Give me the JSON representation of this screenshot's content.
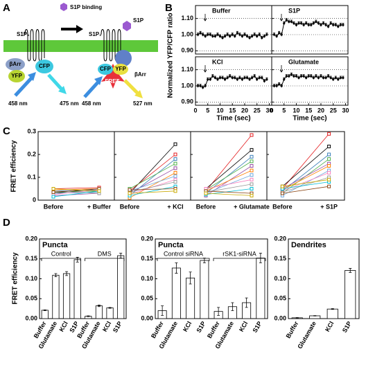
{
  "diagram": {
    "label": "A",
    "binding": "S1P binding",
    "receptor": "S1P₁",
    "ligand": "S1P",
    "arrestin": "βArr",
    "yfp": "YFP",
    "cfp": "CFP",
    "ex": "458 nm",
    "em_cfp": "475 nm",
    "fret": "FRET",
    "em_fret": "527 nm"
  },
  "chart_data": [
    {
      "type": "line",
      "panel": "B",
      "title": "Buffer",
      "ylabel": "Normalized YFP/CFP ratio",
      "color": "#000000",
      "x": [
        1,
        2,
        3,
        4,
        5,
        6,
        7,
        8,
        9,
        10,
        11,
        12,
        13,
        14,
        15,
        16,
        17,
        18,
        19,
        20,
        21,
        22,
        23,
        24,
        25,
        26,
        27,
        28,
        29
      ],
      "values": [
        1.0,
        1.01,
        1.0,
        0.99,
        1.0,
        1.0,
        0.99,
        0.99,
        1.0,
        0.99,
        0.98,
        0.99,
        1.0,
        0.99,
        1.0,
        0.99,
        1.01,
        1.0,
        0.99,
        1.0,
        0.99,
        0.98,
        0.99,
        1.0,
        0.99,
        1.0,
        0.98,
        0.99,
        1.0
      ],
      "errors": [
        0.01,
        0.01,
        0.01,
        0.01,
        0.01,
        0.01,
        0.01,
        0.01,
        0.01,
        0.01,
        0.01,
        0.01,
        0.01,
        0.01,
        0.01,
        0.01,
        0.01,
        0.01,
        0.01,
        0.01,
        0.01,
        0.01,
        0.01,
        0.01,
        0.01,
        0.01,
        0.01,
        0.01,
        0.01
      ],
      "xlim": [
        0,
        31
      ],
      "ylim": [
        0.88,
        1.18
      ],
      "yticks": [
        {
          "value": 0.9,
          "label": "0.90"
        },
        {
          "value": 1.0,
          "label": "1.00"
        },
        {
          "value": 1.1,
          "label": "1.10"
        }
      ],
      "grid": true
    },
    {
      "type": "line",
      "title": "S1P",
      "color": "#000000",
      "x": [
        1,
        2,
        3,
        4,
        5,
        6,
        7,
        8,
        9,
        10,
        11,
        12,
        13,
        14,
        15,
        16,
        17,
        18,
        19,
        20,
        21,
        22,
        23,
        24,
        25,
        26,
        27,
        28,
        29
      ],
      "values": [
        1.0,
        0.99,
        1.01,
        1.0,
        1.07,
        1.09,
        1.08,
        1.08,
        1.07,
        1.06,
        1.07,
        1.07,
        1.06,
        1.07,
        1.06,
        1.06,
        1.07,
        1.08,
        1.07,
        1.06,
        1.07,
        1.06,
        1.05,
        1.07,
        1.06,
        1.06,
        1.05,
        1.06,
        1.06
      ],
      "errors": [
        0.01,
        0.01,
        0.01,
        0.01,
        0.01,
        0.01,
        0.01,
        0.01,
        0.01,
        0.01,
        0.01,
        0.01,
        0.01,
        0.01,
        0.01,
        0.01,
        0.01,
        0.01,
        0.01,
        0.01,
        0.01,
        0.01,
        0.01,
        0.01,
        0.01,
        0.01,
        0.01,
        0.01,
        0.01
      ],
      "xlim": [
        0,
        31
      ],
      "ylim": [
        0.88,
        1.18
      ],
      "yticks": [
        0.9,
        1.0,
        1.1
      ],
      "grid": true
    },
    {
      "type": "line",
      "title": "KCl",
      "xlabel": "Time (sec)",
      "color": "#000000",
      "x": [
        1,
        2,
        3,
        4,
        5,
        6,
        7,
        8,
        9,
        10,
        11,
        12,
        13,
        14,
        15,
        16,
        17,
        18,
        19,
        20,
        21,
        22,
        23,
        24,
        25,
        26,
        27,
        28,
        29
      ],
      "values": [
        1.0,
        1.0,
        0.99,
        1.0,
        1.04,
        1.04,
        1.06,
        1.05,
        1.04,
        1.05,
        1.05,
        1.04,
        1.05,
        1.06,
        1.05,
        1.05,
        1.04,
        1.05,
        1.04,
        1.05,
        1.05,
        1.04,
        1.05,
        1.06,
        1.04,
        1.05,
        1.05,
        1.03,
        1.04
      ],
      "errors": [
        0.01,
        0.01,
        0.01,
        0.01,
        0.01,
        0.01,
        0.01,
        0.01,
        0.01,
        0.01,
        0.01,
        0.01,
        0.01,
        0.01,
        0.01,
        0.01,
        0.01,
        0.01,
        0.01,
        0.01,
        0.01,
        0.01,
        0.01,
        0.01,
        0.01,
        0.01,
        0.01,
        0.01,
        0.01
      ],
      "xlim": [
        0,
        31
      ],
      "ylim": [
        0.88,
        1.18
      ],
      "xticks": [
        0,
        5,
        10,
        15,
        20,
        25,
        30
      ],
      "yticks": [
        {
          "value": 0.9,
          "label": "0.90"
        },
        {
          "value": 1.0,
          "label": "1.00"
        },
        {
          "value": 1.1,
          "label": "1.10"
        }
      ],
      "grid": true
    },
    {
      "type": "line",
      "title": "Glutamate",
      "xlabel": "Time (sec)",
      "color": "#000000",
      "x": [
        1,
        2,
        3,
        4,
        5,
        6,
        7,
        8,
        9,
        10,
        11,
        12,
        13,
        14,
        15,
        16,
        17,
        18,
        19,
        20,
        21,
        22,
        23,
        24,
        25,
        26,
        27,
        28,
        29
      ],
      "values": [
        1.0,
        1.0,
        1.01,
        1.0,
        1.04,
        1.06,
        1.06,
        1.07,
        1.06,
        1.06,
        1.05,
        1.06,
        1.06,
        1.05,
        1.06,
        1.06,
        1.05,
        1.06,
        1.05,
        1.06,
        1.05,
        1.05,
        1.06,
        1.05,
        1.04,
        1.05,
        1.04,
        1.05,
        1.05
      ],
      "errors": [
        0.01,
        0.01,
        0.01,
        0.01,
        0.01,
        0.01,
        0.01,
        0.01,
        0.01,
        0.01,
        0.01,
        0.01,
        0.01,
        0.01,
        0.01,
        0.01,
        0.01,
        0.01,
        0.01,
        0.01,
        0.01,
        0.01,
        0.01,
        0.01,
        0.01,
        0.01,
        0.01,
        0.01,
        0.01
      ],
      "xlim": [
        0,
        31
      ],
      "ylim": [
        0.88,
        1.18
      ],
      "xticks": [
        0,
        5,
        10,
        15,
        20,
        25,
        30
      ],
      "yticks": [
        0.9,
        1.0,
        1.1
      ],
      "grid": true
    },
    {
      "type": "line",
      "panel": "C",
      "ylabel": "FRET efficiency",
      "categories": [
        "Before",
        "+ Buffer"
      ],
      "ylim": [
        0,
        0.3
      ],
      "yticks": [
        0,
        0.1,
        0.2,
        0.3
      ],
      "series": [
        {
          "color": "#000000",
          "values": [
            0.03,
            0.05
          ]
        },
        {
          "color": "#e41a1c",
          "values": [
            0.05,
            0.055
          ]
        },
        {
          "color": "#377eb8",
          "values": [
            0.04,
            0.045
          ]
        },
        {
          "color": "#4daf4a",
          "values": [
            0.035,
            0.04
          ]
        },
        {
          "color": "#984ea3",
          "values": [
            0.02,
            0.03
          ]
        },
        {
          "color": "#ff7f00",
          "values": [
            0.045,
            0.05
          ]
        },
        {
          "color": "#6fa8dc",
          "values": [
            0.03,
            0.035
          ]
        },
        {
          "color": "#f781bf",
          "values": [
            0.025,
            0.045
          ]
        },
        {
          "color": "#999999",
          "values": [
            0.04,
            0.03
          ]
        },
        {
          "color": "#00bcd4",
          "values": [
            0.015,
            0.04
          ]
        },
        {
          "color": "#8b4513",
          "values": [
            0.035,
            0.05
          ]
        },
        {
          "color": "#c9a800",
          "values": [
            0.05,
            0.04
          ]
        }
      ]
    },
    {
      "type": "line",
      "categories": [
        "Before",
        "+ KCl"
      ],
      "ylim": [
        0,
        0.3
      ],
      "yticks": [
        0,
        0.1,
        0.2,
        0.3
      ],
      "series": [
        {
          "color": "#000000",
          "values": [
            0.03,
            0.245
          ]
        },
        {
          "color": "#e41a1c",
          "values": [
            0.04,
            0.2
          ]
        },
        {
          "color": "#377eb8",
          "values": [
            0.02,
            0.18
          ]
        },
        {
          "color": "#4daf4a",
          "values": [
            0.05,
            0.16
          ]
        },
        {
          "color": "#984ea3",
          "values": [
            0.03,
            0.14
          ]
        },
        {
          "color": "#ff7f00",
          "values": [
            0.01,
            0.12
          ]
        },
        {
          "color": "#6fa8dc",
          "values": [
            0.04,
            0.105
          ]
        },
        {
          "color": "#f781bf",
          "values": [
            0.025,
            0.09
          ]
        },
        {
          "color": "#999999",
          "values": [
            0.035,
            0.08
          ]
        },
        {
          "color": "#00bcd4",
          "values": [
            0.02,
            0.06
          ]
        },
        {
          "color": "#8b4513",
          "values": [
            0.045,
            0.05
          ]
        },
        {
          "color": "#c9a800",
          "values": [
            0.03,
            0.04
          ]
        }
      ]
    },
    {
      "type": "line",
      "categories": [
        "Before",
        "+ Glutamate"
      ],
      "ylim": [
        0,
        0.3
      ],
      "yticks": [
        0,
        0.1,
        0.2,
        0.3
      ],
      "series": [
        {
          "color": "#e41a1c",
          "values": [
            0.04,
            0.285
          ]
        },
        {
          "color": "#000000",
          "values": [
            0.05,
            0.22
          ]
        },
        {
          "color": "#377eb8",
          "values": [
            0.03,
            0.19
          ]
        },
        {
          "color": "#4daf4a",
          "values": [
            0.045,
            0.17
          ]
        },
        {
          "color": "#984ea3",
          "values": [
            0.02,
            0.15
          ]
        },
        {
          "color": "#ff7f00",
          "values": [
            0.04,
            0.13
          ]
        },
        {
          "color": "#6fa8dc",
          "values": [
            0.03,
            0.11
          ]
        },
        {
          "color": "#f781bf",
          "values": [
            0.05,
            0.09
          ]
        },
        {
          "color": "#999999",
          "values": [
            0.035,
            0.07
          ]
        },
        {
          "color": "#00bcd4",
          "values": [
            0.025,
            0.05
          ]
        },
        {
          "color": "#8b4513",
          "values": [
            0.04,
            0.03
          ]
        },
        {
          "color": "#c9a800",
          "values": [
            0.03,
            0.02
          ]
        }
      ]
    },
    {
      "type": "line",
      "categories": [
        "Before",
        "+ S1P"
      ],
      "ylim": [
        0,
        0.3
      ],
      "yticks": [
        0,
        0.1,
        0.2,
        0.3
      ],
      "series": [
        {
          "color": "#e41a1c",
          "values": [
            0.05,
            0.29
          ]
        },
        {
          "color": "#000000",
          "values": [
            0.06,
            0.235
          ]
        },
        {
          "color": "#377eb8",
          "values": [
            0.04,
            0.2
          ]
        },
        {
          "color": "#4daf4a",
          "values": [
            0.03,
            0.18
          ]
        },
        {
          "color": "#984ea3",
          "values": [
            0.05,
            0.16
          ]
        },
        {
          "color": "#ff7f00",
          "values": [
            0.045,
            0.15
          ]
        },
        {
          "color": "#6fa8dc",
          "values": [
            0.02,
            0.13
          ]
        },
        {
          "color": "#f781bf",
          "values": [
            0.04,
            0.12
          ]
        },
        {
          "color": "#999999",
          "values": [
            0.035,
            0.1
          ]
        },
        {
          "color": "#00bcd4",
          "values": [
            0.05,
            0.08
          ]
        },
        {
          "color": "#8b4513",
          "values": [
            0.03,
            0.06
          ]
        },
        {
          "color": "#c9a800",
          "values": [
            0.06,
            0.09
          ]
        }
      ]
    },
    {
      "type": "bar",
      "panel": "D",
      "title": "Puncta",
      "ylabel": "FRET efficiency",
      "groups": [
        "Control",
        "DMS"
      ],
      "categories": [
        "Buffer",
        "Glutamate",
        "KCl",
        "S1P",
        "Buffer",
        "Glutamate",
        "KCl",
        "S1P"
      ],
      "values": [
        0.021,
        0.109,
        0.113,
        0.148,
        0.006,
        0.032,
        0.027,
        0.158
      ],
      "errors": [
        0.001,
        0.004,
        0.005,
        0.006,
        0.001,
        0.002,
        0.001,
        0.006
      ],
      "ylim": [
        0,
        0.2
      ],
      "yticks": [
        {
          "value": 0,
          "label": "0.00"
        },
        {
          "value": 0.05,
          "label": "0.05"
        },
        {
          "value": 0.1,
          "label": "0.10"
        },
        {
          "value": 0.15,
          "label": "0.15"
        },
        {
          "value": 0.2,
          "label": "0.20"
        }
      ]
    },
    {
      "type": "bar",
      "title": "Puncta",
      "groups": [
        "Control siRNA",
        "rSK1-siRNA"
      ],
      "categories": [
        "Buffer",
        "Glutamate",
        "KCl",
        "S1P",
        "Buffer",
        "Glutamate",
        "KCl",
        "S1P"
      ],
      "values": [
        0.02,
        0.127,
        0.102,
        0.146,
        0.018,
        0.03,
        0.04,
        0.152
      ],
      "errors": [
        0.012,
        0.013,
        0.015,
        0.006,
        0.01,
        0.01,
        0.012,
        0.012
      ],
      "ylim": [
        0,
        0.2
      ],
      "yticks": [
        {
          "value": 0,
          "label": "0.00"
        },
        {
          "value": 0.05,
          "label": "0.05"
        },
        {
          "value": 0.1,
          "label": "0.10"
        },
        {
          "value": 0.15,
          "label": "0.15"
        },
        {
          "value": 0.2,
          "label": "0.20"
        }
      ]
    },
    {
      "type": "bar",
      "title": "Dendrites",
      "categories": [
        "Buffer",
        "Glutamate",
        "KCl",
        "S1P"
      ],
      "values": [
        0.002,
        0.007,
        0.024,
        0.121
      ],
      "errors": [
        0.0005,
        0.0005,
        0.001,
        0.005
      ],
      "ylim": [
        0,
        0.2
      ],
      "yticks": [
        {
          "value": 0,
          "label": "0.00"
        },
        {
          "value": 0.05,
          "label": "0.05"
        },
        {
          "value": 0.1,
          "label": "0.10"
        },
        {
          "value": 0.15,
          "label": "0.15"
        },
        {
          "value": 0.2,
          "label": "0.20"
        }
      ]
    }
  ]
}
